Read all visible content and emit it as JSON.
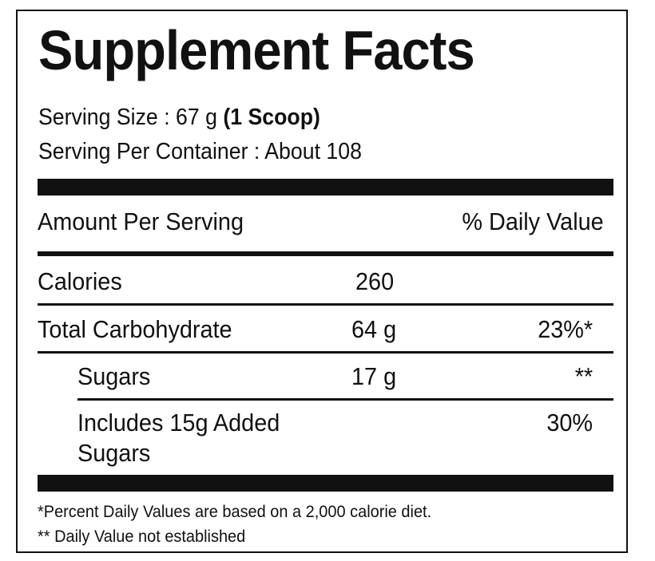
{
  "label": {
    "title": "Supplement Facts",
    "serving_size_label": "Serving Size : 67 g ",
    "serving_size_bold": "(1 Scoop)",
    "servings_per_container": "Serving Per Container : About 108",
    "header_amount": "Amount Per Serving",
    "header_daily_value": "% Daily Value",
    "rows": [
      {
        "name": "Calories",
        "amount": "260",
        "dv": ""
      },
      {
        "name": "Total Carbohydrate",
        "amount": "64 g",
        "dv": "23%*"
      },
      {
        "name": "Sugars",
        "amount": "17 g",
        "dv": "**"
      },
      {
        "name_line1": "Includes 15g Added",
        "name_line2": "Sugars",
        "amount": "",
        "dv": "30%"
      }
    ],
    "footnote_1": "*Percent Daily Values are based on a 2,000 calorie diet.",
    "footnote_2": "**  Daily Value not established"
  },
  "colors": {
    "ink": "#111111",
    "background": "#ffffff"
  }
}
